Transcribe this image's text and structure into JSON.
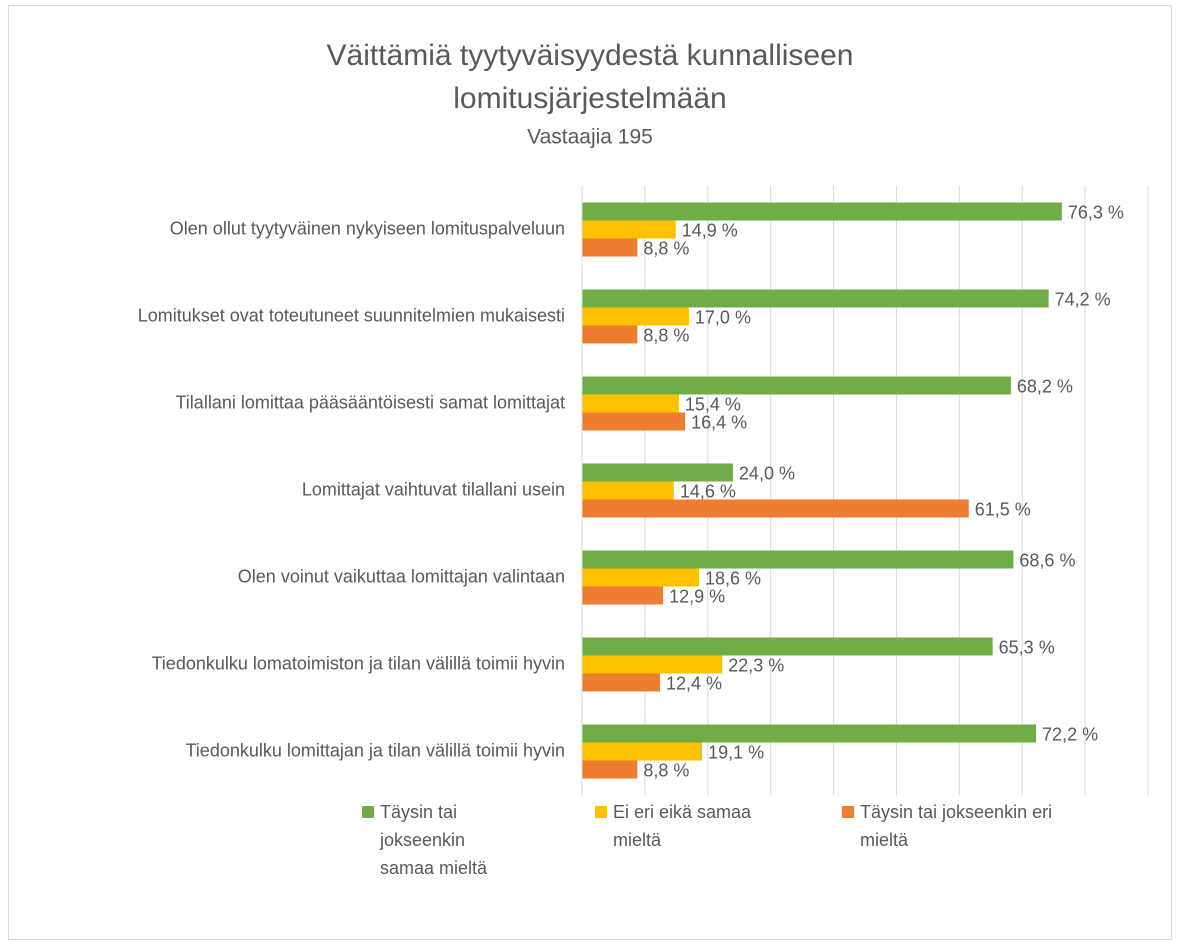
{
  "chart_data": {
    "type": "hbar",
    "title": "Väittämiä tyytyväisyydestä kunnalliseen lomitusjärjestelmään",
    "subtitle": "Vastaajia 195",
    "categories": [
      "Olen ollut tyytyväinen nykyiseen lomituspalveluun",
      "Lomitukset ovat toteutuneet suunnitelmien mukaisesti",
      "Tilallani lomittaa pääsääntöisesti samat lomittajat",
      "Lomittajat vaihtuvat tilallani usein",
      "Olen voinut vaikuttaa lomittajan valintaan",
      "Tiedonkulku lomatoimiston ja tilan välillä toimii hyvin",
      "Tiedonkulku lomittajan ja tilan välillä toimii hyvin"
    ],
    "series": [
      {
        "name": "Täysin tai jokseenkin samaa mieltä",
        "color": "#70ad47",
        "values": [
          76.3,
          74.2,
          68.2,
          24.0,
          68.6,
          65.3,
          72.2
        ],
        "value_labels": [
          "76,3 %",
          "74,2 %",
          "68,2 %",
          "24,0 %",
          "68,6 %",
          "65,3 %",
          "72,2 %"
        ]
      },
      {
        "name": "Ei eri eikä samaa mieltä",
        "color": "#ffc000",
        "values": [
          14.9,
          17.0,
          15.4,
          14.6,
          18.6,
          22.3,
          19.1
        ],
        "value_labels": [
          "14,9 %",
          "17,0 %",
          "15,4 %",
          "14,6 %",
          "18,6 %",
          "22,3 %",
          "19,1 %"
        ]
      },
      {
        "name": "Täysin tai jokseenkin eri mieltä",
        "color": "#ed7d31",
        "values": [
          8.8,
          8.8,
          16.4,
          61.5,
          12.9,
          12.4,
          8.8
        ],
        "value_labels": [
          "8,8 %",
          "8,8 %",
          "16,4 %",
          "61,5 %",
          "12,9 %",
          "12,4 %",
          "8,8 %"
        ]
      }
    ],
    "xlim": [
      0,
      90
    ],
    "xticks": [
      0,
      10,
      20,
      30,
      40,
      50,
      60,
      70,
      80,
      90
    ],
    "grid": true,
    "legend": "bottom"
  }
}
